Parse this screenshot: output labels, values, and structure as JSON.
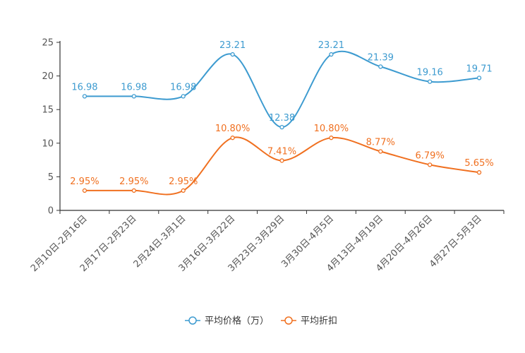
{
  "chart_data": {
    "type": "line",
    "title": "",
    "xlabel": "",
    "ylabel": "",
    "ylim": [
      0,
      25
    ],
    "yticks": [
      0,
      5,
      10,
      15,
      20,
      25
    ],
    "categories": [
      "2月10日-2月16日",
      "2月17日-2月23日",
      "2月24日-3月1日",
      "3月16日-3月22日",
      "3月23日-3月29日",
      "3月30日-4月5日",
      "4月13日-4月19日",
      "4月20日-4月26日",
      "4月27日-5月3日"
    ],
    "series": [
      {
        "name": "平均价格（万）",
        "color": "#3d9bd0",
        "values": [
          16.98,
          16.98,
          16.98,
          23.21,
          12.38,
          23.21,
          21.39,
          19.16,
          19.71
        ],
        "labels": [
          "16.98",
          "16.98",
          "16.98",
          "23.21",
          "12.38",
          "23.21",
          "21.39",
          "19.16",
          "19.71"
        ]
      },
      {
        "name": "平均折扣",
        "color": "#f07020",
        "values": [
          2.95,
          2.95,
          2.95,
          10.8,
          7.41,
          10.8,
          8.77,
          6.79,
          5.65
        ],
        "labels": [
          "2.95%",
          "2.95%",
          "2.95%",
          "10.80%",
          "7.41%",
          "10.80%",
          "8.77%",
          "6.79%",
          "5.65%"
        ]
      }
    ],
    "legend_position": "bottom-center",
    "grid": false
  }
}
